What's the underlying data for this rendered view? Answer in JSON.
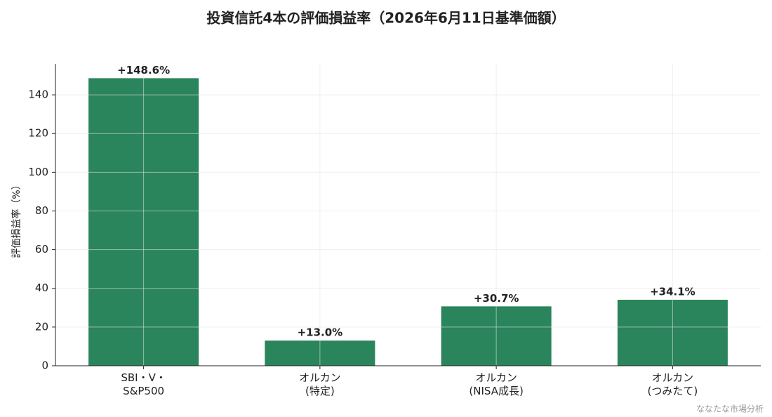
{
  "chart_data": {
    "type": "bar",
    "title": "投資信託4本の評価損益率（2026年6月11日基準価額）",
    "y_label": "評価損益率（%）",
    "categories": [
      "SBI・V・\nS&P500",
      "オルカン\n(特定)",
      "オルカン\n(NISA成長)",
      "オルカン\n(つみたて)"
    ],
    "values": [
      148.6,
      13.0,
      30.7,
      34.1
    ],
    "value_labels": [
      "+148.6%",
      "+13.0%",
      "+30.7%",
      "+34.1%"
    ],
    "color": "#2a845c",
    "ylim": [
      0,
      156
    ],
    "yticks": [
      0,
      20,
      40,
      60,
      80,
      100,
      120,
      140
    ],
    "grid": true,
    "source": "ななたな市場分析"
  }
}
